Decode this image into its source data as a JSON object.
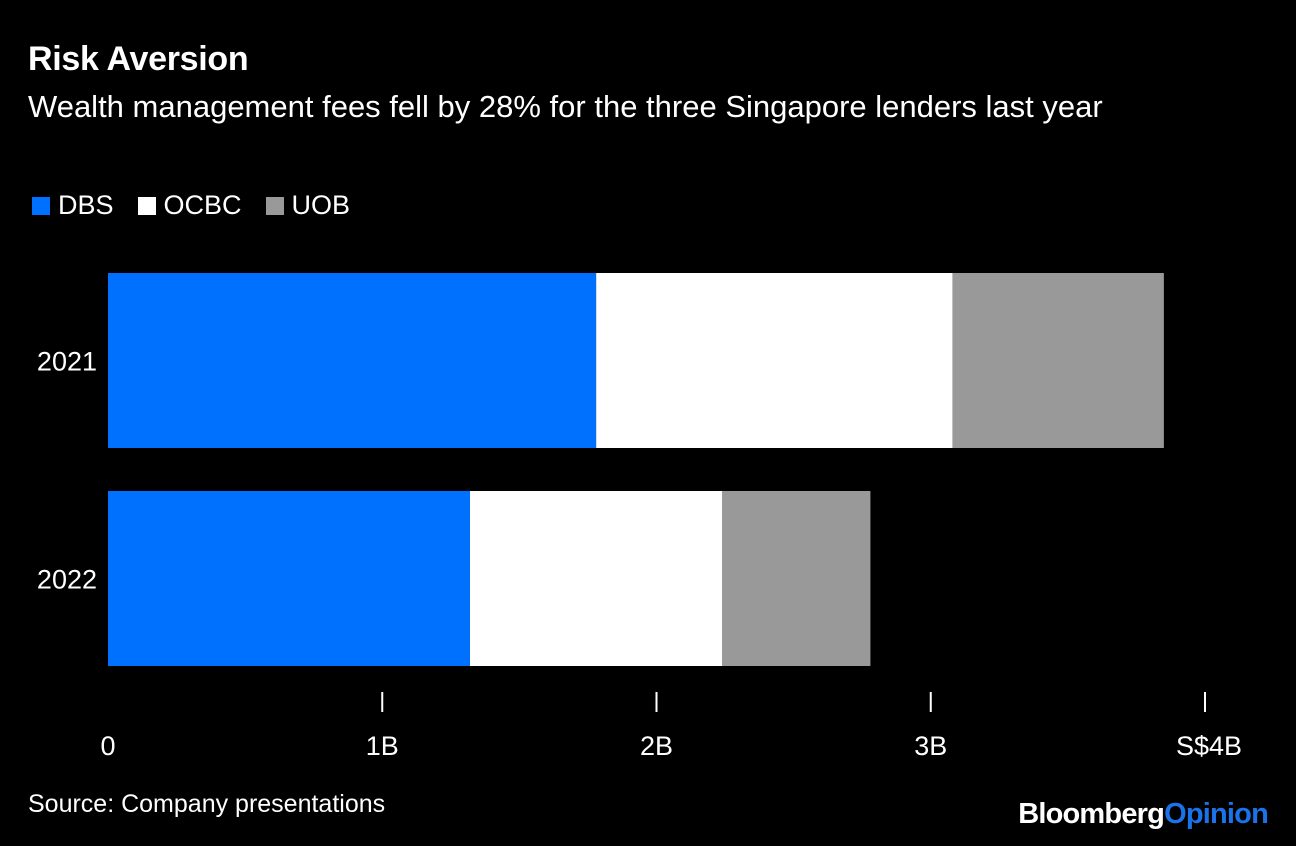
{
  "title": "Risk Aversion",
  "subtitle": "Wealth management fees fell by 28% for the three Singapore lenders last year",
  "source": "Source: Company presentations",
  "brand": {
    "part1": "Bloomberg",
    "part2": "Opinion"
  },
  "colors": {
    "DBS": "#0070ff",
    "OCBC": "#ffffff",
    "UOB": "#999999",
    "background": "#000000",
    "text": "#ffffff",
    "brand_accent": "#1a73e8"
  },
  "chart_data": {
    "type": "bar",
    "orientation": "horizontal",
    "stacked": true,
    "categories": [
      "2021",
      "2022"
    ],
    "series": [
      {
        "name": "DBS",
        "values": [
          1.78,
          1.32
        ]
      },
      {
        "name": "OCBC",
        "values": [
          1.3,
          0.92
        ]
      },
      {
        "name": "UOB",
        "values": [
          0.77,
          0.54
        ]
      }
    ],
    "xlim": [
      0,
      4
    ],
    "xticks": [
      0,
      1,
      2,
      3,
      4
    ],
    "xtick_labels": [
      "0",
      "1B",
      "2B",
      "3B",
      "S$4B"
    ],
    "legend_position": "top-left",
    "grid": false
  }
}
